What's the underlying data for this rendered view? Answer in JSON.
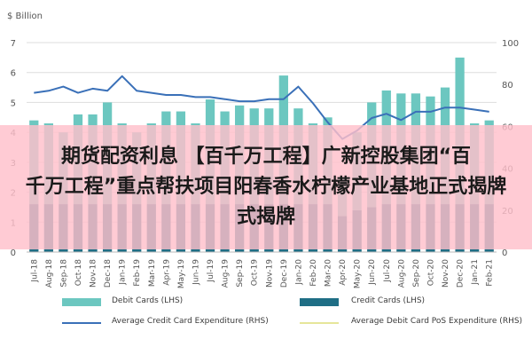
{
  "chart_data": {
    "type": "bar",
    "left_axis_label": "$ Billion",
    "left_ticks": [
      "0",
      "1",
      "2",
      "3",
      "4",
      "5",
      "6",
      "7"
    ],
    "right_ticks": [
      "0",
      "20",
      "40",
      "60",
      "80",
      "100"
    ],
    "ylim_left": [
      0,
      7
    ],
    "ylim_right": [
      0,
      100
    ],
    "categories": [
      "Jul-18",
      "Aug-18",
      "Sep-18",
      "Oct-18",
      "Nov-18",
      "Dec-18",
      "Jan-19",
      "Feb-19",
      "Mar-19",
      "Apr-19",
      "May-19",
      "Jun-19",
      "Jul-19",
      "Aug-19",
      "Sep-19",
      "Oct-19",
      "Nov-19",
      "Dec-19",
      "Jan-20",
      "Feb-20",
      "Mar-20",
      "Apr-20",
      "May-20",
      "Jun-20",
      "Jul-20",
      "Aug-20",
      "Sep-20",
      "Oct-20",
      "Nov-20",
      "Dec-20",
      "Jan-21",
      "Feb-21"
    ],
    "tick_labels": [
      "Jul-18",
      "",
      "Sep-18",
      "",
      "Oct-18",
      "",
      "Dec-18",
      "",
      "Feb-19",
      "",
      "Apr-19",
      "",
      "Jun-19",
      "",
      "Jul-19",
      "",
      "Sep-19",
      "",
      "Nov-19",
      "",
      "Jan-20",
      "",
      "Mar-20",
      "",
      "Apr-20",
      "",
      "Jun-20",
      "",
      "Aug-20",
      "",
      "Oct-20",
      "",
      "Dec-20",
      "",
      "Jan-21",
      "",
      "Feb-21"
    ],
    "series": [
      {
        "name": "Debit Cards (LHS)",
        "axis": "left",
        "color": "#6cc7c0",
        "values": [
          4.4,
          4.3,
          4.0,
          4.6,
          4.6,
          5.0,
          4.3,
          4.0,
          4.3,
          4.7,
          4.7,
          4.3,
          5.1,
          4.7,
          4.9,
          4.8,
          4.8,
          5.9,
          4.8,
          4.3,
          4.5,
          2.5,
          4.0,
          5.0,
          5.4,
          5.3,
          5.3,
          5.2,
          5.5,
          6.5,
          4.3,
          4.4
        ]
      },
      {
        "name": "Credit Cards (LHS)",
        "axis": "left",
        "color": "#1f6e85",
        "values": [
          1.6,
          1.6,
          1.6,
          1.6,
          1.6,
          1.6,
          1.6,
          1.6,
          1.6,
          1.6,
          1.6,
          1.6,
          1.6,
          1.6,
          1.6,
          1.6,
          1.6,
          1.6,
          1.6,
          1.6,
          1.6,
          1.2,
          1.4,
          1.5,
          1.6,
          1.6,
          1.6,
          1.6,
          1.6,
          1.6,
          1.6,
          1.6
        ]
      },
      {
        "name": "Average Credit Card Expenditure (RHS)",
        "axis": "right",
        "color": "#3a70b8",
        "values": [
          76,
          77,
          79,
          76,
          78,
          77,
          84,
          77,
          76,
          75,
          75,
          74,
          74,
          73,
          72,
          72,
          73,
          73,
          79,
          71,
          62,
          54,
          58,
          64,
          66,
          63,
          67,
          67,
          69,
          69,
          68,
          67
        ]
      },
      {
        "name": "Average Debit Card PoS Expenditure (RHS)",
        "axis": "right",
        "color": "#e6e69a",
        "values": [
          null,
          null,
          null,
          null,
          null,
          null,
          null,
          null,
          null,
          null,
          null,
          null,
          null,
          null,
          null,
          null,
          null,
          null,
          null,
          null,
          null,
          null,
          null,
          null,
          null,
          null,
          null,
          null,
          null,
          null,
          null,
          null
        ]
      }
    ],
    "banner_lines": [
      "期货配资利息 【百千万工程】广新控股集团“百",
      "千万工程”重点帮扶项目阳春香水柠檬产业基地正式揭牌",
      "式揭牌"
    ]
  }
}
